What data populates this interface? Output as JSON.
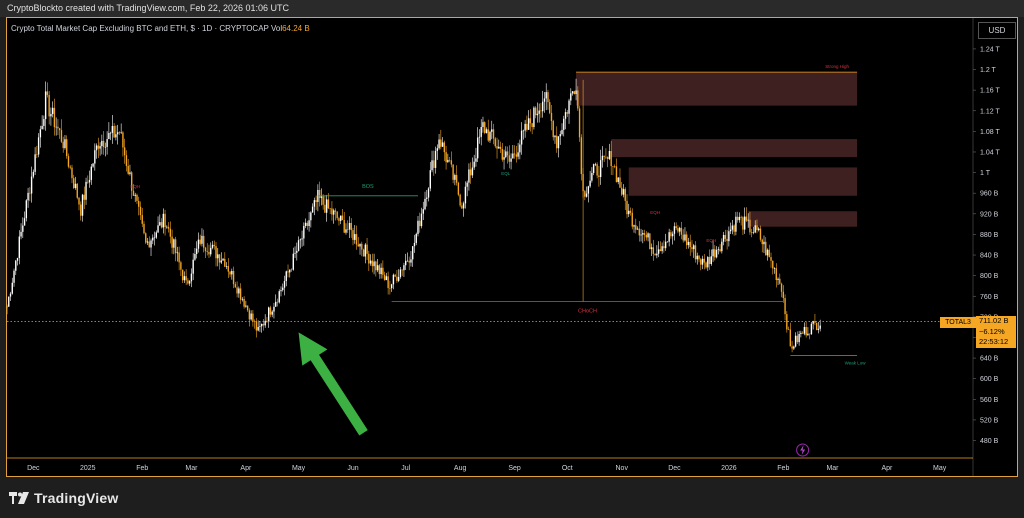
{
  "header": {
    "caption": "CryptoBlockto created with TradingView.com, Feb 22, 2026 01:06 UTC"
  },
  "symbol": {
    "title": "Crypto Total Market Cap Excluding BTC and ETH, $ · 1D · CRYPTOCAP",
    "vol_label": "Vol",
    "vol_value": "64.24 B"
  },
  "currency": "USD",
  "brand": "TradingView",
  "colors": {
    "background": "#000000",
    "candle": "#f5a623",
    "candle_up": "#ffffff",
    "bos": "#1f9e7a",
    "choch": "#d8313f",
    "supply_zone": "#4a2626",
    "accent": "#f5a623",
    "arrow": "#3cb043"
  },
  "chart_data": {
    "type": "candlestick",
    "y_axis": {
      "scale": "linear",
      "unit": "USD",
      "range": [
        450000000000,
        1300000000000
      ],
      "ticks": [
        {
          "label": "1.24 T",
          "value": 1240000000000
        },
        {
          "label": "1.2 T",
          "value": 1200000000000
        },
        {
          "label": "1.16 T",
          "value": 1160000000000
        },
        {
          "label": "1.12 T",
          "value": 1120000000000
        },
        {
          "label": "1.08 T",
          "value": 1080000000000
        },
        {
          "label": "1.04 T",
          "value": 1040000000000
        },
        {
          "label": "1 T",
          "value": 1000000000000
        },
        {
          "label": "960 B",
          "value": 960000000000
        },
        {
          "label": "920 B",
          "value": 920000000000
        },
        {
          "label": "880 B",
          "value": 880000000000
        },
        {
          "label": "840 B",
          "value": 840000000000
        },
        {
          "label": "800 B",
          "value": 800000000000
        },
        {
          "label": "760 B",
          "value": 760000000000
        },
        {
          "label": "720 B",
          "value": 720000000000
        },
        {
          "label": "680 B",
          "value": 680000000000
        },
        {
          "label": "640 B",
          "value": 640000000000
        },
        {
          "label": "600 B",
          "value": 600000000000
        },
        {
          "label": "560 B",
          "value": 560000000000
        },
        {
          "label": "520 B",
          "value": 520000000000
        },
        {
          "label": "480 B",
          "value": 480000000000
        }
      ]
    },
    "x_axis": {
      "type": "time",
      "range": [
        "2024-11-16",
        "2026-05-20"
      ],
      "ticks": [
        {
          "label": "Dec",
          "date": "2024-12-01"
        },
        {
          "label": "2025",
          "date": "2025-01-01"
        },
        {
          "label": "Feb",
          "date": "2025-02-01"
        },
        {
          "label": "Mar",
          "date": "2025-03-01"
        },
        {
          "label": "Apr",
          "date": "2025-04-01"
        },
        {
          "label": "May",
          "date": "2025-05-01"
        },
        {
          "label": "Jun",
          "date": "2025-06-01"
        },
        {
          "label": "Jul",
          "date": "2025-07-01"
        },
        {
          "label": "Aug",
          "date": "2025-08-01"
        },
        {
          "label": "Sep",
          "date": "2025-09-01"
        },
        {
          "label": "Oct",
          "date": "2025-10-01"
        },
        {
          "label": "Nov",
          "date": "2025-11-01"
        },
        {
          "label": "Dec",
          "date": "2025-12-01"
        },
        {
          "label": "2026",
          "date": "2026-01-01"
        },
        {
          "label": "Feb",
          "date": "2026-02-01"
        },
        {
          "label": "Mar",
          "date": "2026-03-01"
        },
        {
          "label": "Apr",
          "date": "2026-04-01"
        },
        {
          "label": "May",
          "date": "2026-05-01"
        }
      ]
    },
    "series": [
      {
        "kind": "close_path",
        "points": [
          {
            "date": "2024-11-16",
            "value": 740000000000
          },
          {
            "date": "2024-11-25",
            "value": 900000000000
          },
          {
            "date": "2024-12-08",
            "value": 1140000000000
          },
          {
            "date": "2024-12-18",
            "value": 1060000000000
          },
          {
            "date": "2024-12-28",
            "value": 930000000000
          },
          {
            "date": "2025-01-07",
            "value": 1060000000000
          },
          {
            "date": "2025-01-19",
            "value": 1080000000000
          },
          {
            "date": "2025-02-03",
            "value": 860000000000
          },
          {
            "date": "2025-02-14",
            "value": 910000000000
          },
          {
            "date": "2025-02-26",
            "value": 780000000000
          },
          {
            "date": "2025-03-06",
            "value": 870000000000
          },
          {
            "date": "2025-03-20",
            "value": 830000000000
          },
          {
            "date": "2025-03-31",
            "value": 750000000000
          },
          {
            "date": "2025-04-08",
            "value": 690000000000
          },
          {
            "date": "2025-04-22",
            "value": 780000000000
          },
          {
            "date": "2025-05-12",
            "value": 950000000000
          },
          {
            "date": "2025-06-01",
            "value": 880000000000
          },
          {
            "date": "2025-06-22",
            "value": 780000000000
          },
          {
            "date": "2025-07-05",
            "value": 850000000000
          },
          {
            "date": "2025-07-20",
            "value": 1070000000000
          },
          {
            "date": "2025-08-02",
            "value": 940000000000
          },
          {
            "date": "2025-08-14",
            "value": 1090000000000
          },
          {
            "date": "2025-08-29",
            "value": 1020000000000
          },
          {
            "date": "2025-09-18",
            "value": 1150000000000
          },
          {
            "date": "2025-09-25",
            "value": 1060000000000
          },
          {
            "date": "2025-10-06",
            "value": 1180000000000
          },
          {
            "date": "2025-10-10",
            "value": 960000000000
          },
          {
            "date": "2025-10-16",
            "value": 1000000000000
          },
          {
            "date": "2025-10-26",
            "value": 1030000000000
          },
          {
            "date": "2025-11-05",
            "value": 920000000000
          },
          {
            "date": "2025-11-20",
            "value": 850000000000
          },
          {
            "date": "2025-12-03",
            "value": 890000000000
          },
          {
            "date": "2025-12-18",
            "value": 820000000000
          },
          {
            "date": "2026-01-06",
            "value": 910000000000
          },
          {
            "date": "2026-01-18",
            "value": 880000000000
          },
          {
            "date": "2026-01-31",
            "value": 780000000000
          },
          {
            "date": "2026-02-05",
            "value": 660000000000
          },
          {
            "date": "2026-02-12",
            "value": 690000000000
          },
          {
            "date": "2026-02-22",
            "value": 711020000000
          }
        ]
      }
    ],
    "supply_zones": [
      {
        "from": "2025-10-06",
        "to": "2026-03-15",
        "low": 1130000000000,
        "high": 1195000000000,
        "label": "Strong High"
      },
      {
        "from": "2025-10-26",
        "to": "2026-03-15",
        "low": 1030000000000,
        "high": 1065000000000
      },
      {
        "from": "2025-11-05",
        "to": "2026-03-15",
        "low": 955000000000,
        "high": 1010000000000
      },
      {
        "from": "2026-01-12",
        "to": "2026-03-15",
        "low": 895000000000,
        "high": 925000000000
      }
    ],
    "structure_lines": [
      {
        "label": "BOS",
        "from": "2025-05-12",
        "to": "2025-07-08",
        "value": 955000000000,
        "color": "#1f9e7a"
      },
      {
        "label": "CHoCH",
        "from": "2025-06-23",
        "to": "2026-02-01",
        "value": 750000000000,
        "color": "#d8313f"
      },
      {
        "label": "Weak Low",
        "from": "2026-02-05",
        "to": "2026-03-15",
        "value": 645000000000,
        "color": "#1f9e7a"
      }
    ],
    "small_labels": [
      {
        "text": "EQH",
        "date": "2025-01-28",
        "value": 970000000000,
        "color": "#d8313f"
      },
      {
        "text": "EQL",
        "date": "2025-08-27",
        "value": 995000000000,
        "color": "#1f9e7a"
      },
      {
        "text": "EQH",
        "date": "2025-11-20",
        "value": 920000000000,
        "color": "#d8313f"
      },
      {
        "text": "EQH",
        "date": "2025-12-22",
        "value": 865000000000,
        "color": "#d8313f"
      }
    ],
    "reference_line": {
      "value": 711020000000,
      "style": "dotted"
    },
    "annotation_arrow": {
      "tip_date": "2025-05-01",
      "tip_value": 690000000000,
      "tail_date": "2025-06-07",
      "tail_value": 495000000000
    },
    "last_price": {
      "symbol": "TOTAL3",
      "price": "711.02 B",
      "change": "−6.12%",
      "countdown": "22:53:12"
    },
    "grid": false,
    "legend": "none"
  }
}
